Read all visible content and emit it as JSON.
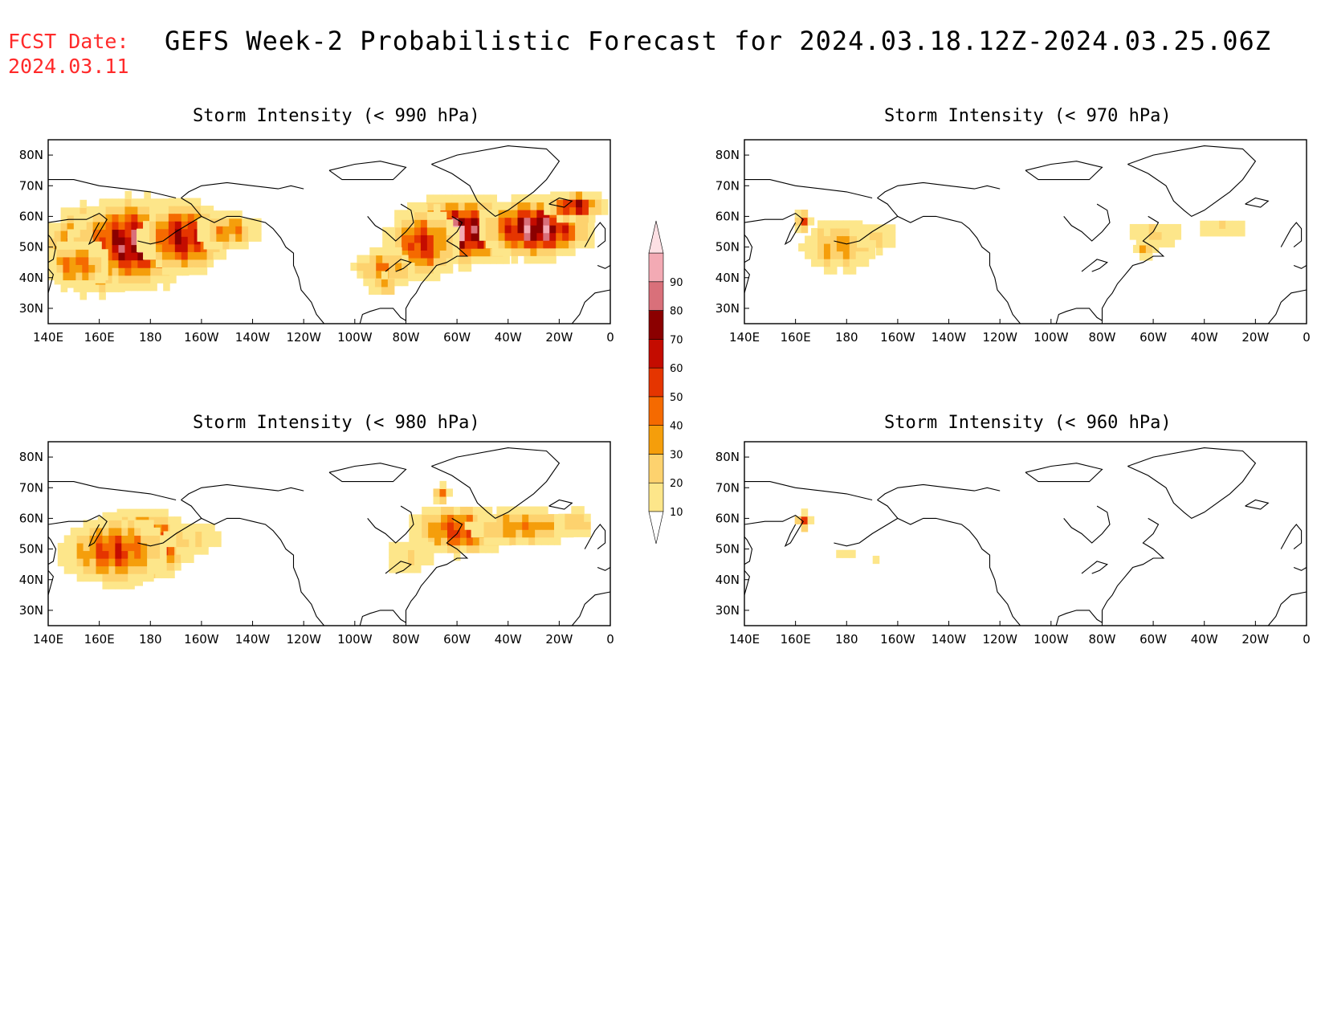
{
  "header": {
    "fcst_label": "FCST Date:",
    "fcst_date": "2024.03.11",
    "title": "GEFS Week-2 Probabilistic Forecast for 2024.03.18.12Z-2024.03.25.06Z"
  },
  "axes": {
    "lon_labels": [
      "140E",
      "160E",
      "180",
      "160W",
      "140W",
      "120W",
      "100W",
      "80W",
      "60W",
      "40W",
      "20W",
      "0"
    ],
    "lat_labels": [
      "80N",
      "70N",
      "60N",
      "50N",
      "40N",
      "30N"
    ]
  },
  "colorbar": {
    "levels": [
      "10",
      "20",
      "30",
      "40",
      "50",
      "60",
      "70",
      "80",
      "90"
    ],
    "colors": [
      "#fff7bc",
      "#fde68a",
      "#fdd26e",
      "#f59e0b",
      "#f56a00",
      "#e53500",
      "#c40c00",
      "#8b0000",
      "#d9707a",
      "#f3aab4",
      "#fde0e4"
    ]
  },
  "panels": [
    {
      "title": "Storm Intensity (< 990 hPa)",
      "threshold": "990",
      "blobs": [
        {
          "lon": 158,
          "lat": 48,
          "rx": 16,
          "ry": 11,
          "peak": 95
        },
        {
          "lon": 172,
          "lat": 50,
          "rx": 20,
          "ry": 12,
          "peak": 78
        },
        {
          "lon": 192,
          "lat": 52,
          "rx": 14,
          "ry": 10,
          "peak": 68
        },
        {
          "lon": 150,
          "lat": 43,
          "rx": 12,
          "ry": 7,
          "peak": 45
        },
        {
          "lon": 210,
          "lat": 54,
          "rx": 12,
          "ry": 6,
          "peak": 40
        },
        {
          "lon": 300,
          "lat": 54,
          "rx": 20,
          "ry": 9,
          "peak": 85
        },
        {
          "lon": 330,
          "lat": 55,
          "rx": 18,
          "ry": 8,
          "peak": 88
        },
        {
          "lon": 285,
          "lat": 50,
          "rx": 12,
          "ry": 10,
          "peak": 60
        },
        {
          "lon": 270,
          "lat": 42,
          "rx": 12,
          "ry": 6,
          "peak": 40
        },
        {
          "lon": 345,
          "lat": 62,
          "rx": 10,
          "ry": 4,
          "peak": 70
        },
        {
          "lon": 270,
          "lat": 36,
          "rx": 6,
          "ry": 4,
          "peak": 30
        }
      ]
    },
    {
      "title": "Storm Intensity (< 970 hPa)",
      "threshold": "970",
      "blobs": [
        {
          "lon": 176,
          "lat": 49,
          "rx": 14,
          "ry": 8,
          "peak": 36
        },
        {
          "lon": 190,
          "lat": 52,
          "rx": 10,
          "ry": 6,
          "peak": 22
        },
        {
          "lon": 162,
          "lat": 57,
          "rx": 3,
          "ry": 3,
          "peak": 50
        },
        {
          "lon": 300,
          "lat": 53,
          "rx": 12,
          "ry": 5,
          "peak": 22
        },
        {
          "lon": 325,
          "lat": 55,
          "rx": 12,
          "ry": 4,
          "peak": 20
        },
        {
          "lon": 296,
          "lat": 48,
          "rx": 4,
          "ry": 3,
          "peak": 35
        }
      ]
    },
    {
      "title": "Storm Intensity (< 980 hPa)",
      "threshold": "980",
      "blobs": [
        {
          "lon": 175,
          "lat": 50,
          "rx": 16,
          "ry": 9,
          "peak": 82
        },
        {
          "lon": 165,
          "lat": 48,
          "rx": 18,
          "ry": 10,
          "peak": 55
        },
        {
          "lon": 195,
          "lat": 52,
          "rx": 14,
          "ry": 7,
          "peak": 22
        },
        {
          "lon": 300,
          "lat": 55,
          "rx": 18,
          "ry": 7,
          "peak": 55
        },
        {
          "lon": 325,
          "lat": 56,
          "rx": 20,
          "ry": 6,
          "peak": 40
        },
        {
          "lon": 345,
          "lat": 57,
          "rx": 8,
          "ry": 5,
          "peak": 30
        },
        {
          "lon": 280,
          "lat": 46,
          "rx": 12,
          "ry": 7,
          "peak": 22
        },
        {
          "lon": 293,
          "lat": 67,
          "rx": 3,
          "ry": 3,
          "peak": 40
        }
      ]
    },
    {
      "title": "Storm Intensity (< 960 hPa)",
      "threshold": "960",
      "blobs": [
        {
          "lon": 162,
          "lat": 58,
          "rx": 3,
          "ry": 3,
          "peak": 45
        },
        {
          "lon": 178,
          "lat": 47,
          "rx": 6,
          "ry": 3,
          "peak": 15
        },
        {
          "lon": 190,
          "lat": 46,
          "rx": 3,
          "ry": 2,
          "peak": 12
        }
      ]
    }
  ]
}
